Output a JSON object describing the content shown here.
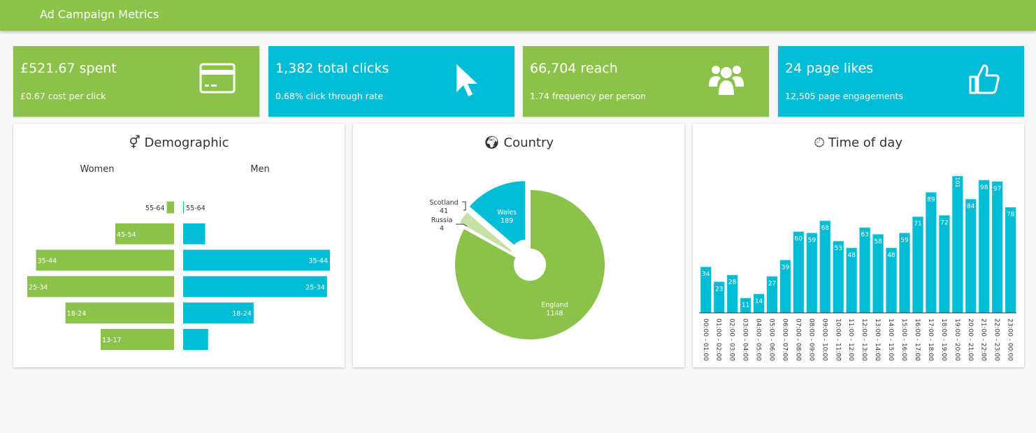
{
  "header": {
    "title": "Ad Campaign Metrics"
  },
  "colors": {
    "green": "#8bc34a",
    "blue": "#00bcd4",
    "light_green": "#c5e1a5"
  },
  "cards": [
    {
      "value": "£521.67 spent",
      "sub": "£0.67 cost per click",
      "icon": "credit-card-icon",
      "color": "#8bc34a"
    },
    {
      "value": "1,382 total clicks",
      "sub": "0.68% click through rate",
      "icon": "mouse-pointer-icon",
      "color": "#00bcd4"
    },
    {
      "value": "66,704 reach",
      "sub": "1.74 frequency per person",
      "icon": "users-icon",
      "color": "#8bc34a"
    },
    {
      "value": "24 page likes",
      "sub": "12,505 page engagements",
      "icon": "thumbs-up-icon",
      "color": "#00bcd4"
    }
  ],
  "chart_data": [
    {
      "type": "bar",
      "title": "Demographic",
      "title_icon": "gender-icon",
      "orientation": "horizontal-pyramid",
      "categories": [
        "55-64",
        "45-54",
        "35-44",
        "25-34",
        "18-24",
        "13-17"
      ],
      "series": [
        {
          "name": "Women",
          "values": [
            5,
            40,
            94,
            100,
            74,
            50
          ],
          "color": "#8bc34a"
        },
        {
          "name": "Men",
          "values": [
            0.5,
            15,
            100,
            98,
            48,
            17
          ],
          "color": "#00bcd4"
        }
      ]
    },
    {
      "type": "pie",
      "title": "Country",
      "title_icon": "globe-icon",
      "categories": [
        "England",
        "Russia",
        "Scotland",
        "Wales"
      ],
      "values": [
        1148,
        4,
        41,
        189
      ],
      "colors": [
        "#8bc34a",
        "#8bc34a",
        "#c5e1a5",
        "#00bcd4"
      ]
    },
    {
      "type": "bar",
      "title": "Time of day",
      "title_icon": "clock-icon",
      "categories": [
        "00:00 - 01:00",
        "01:00 - 02:00",
        "02:00 - 03:00",
        "03:00 - 04:00",
        "04:00 - 05:00",
        "05:00 - 06:00",
        "06:00 - 07:00",
        "07:00 - 08:00",
        "08:00 - 09:00",
        "09:00 - 10:00",
        "10:00 - 11:00",
        "11:00 - 12:00",
        "12:00 - 13:00",
        "13:00 - 14:00",
        "14:00 - 15:00",
        "15:00 - 16:00",
        "16:00 - 17:00",
        "17:00 - 18:00",
        "18:00 - 19:00",
        "19:00 - 20:00",
        "20:00 - 21:00",
        "21:00 - 22:00",
        "22:00 - 23:00",
        "23:00 - 00:00"
      ],
      "values": [
        34,
        23,
        28,
        11,
        14,
        27,
        39,
        60,
        59,
        68,
        53,
        48,
        63,
        58,
        48,
        59,
        71,
        89,
        72,
        101,
        84,
        98,
        97,
        78
      ],
      "color": "#00bcd4"
    }
  ]
}
